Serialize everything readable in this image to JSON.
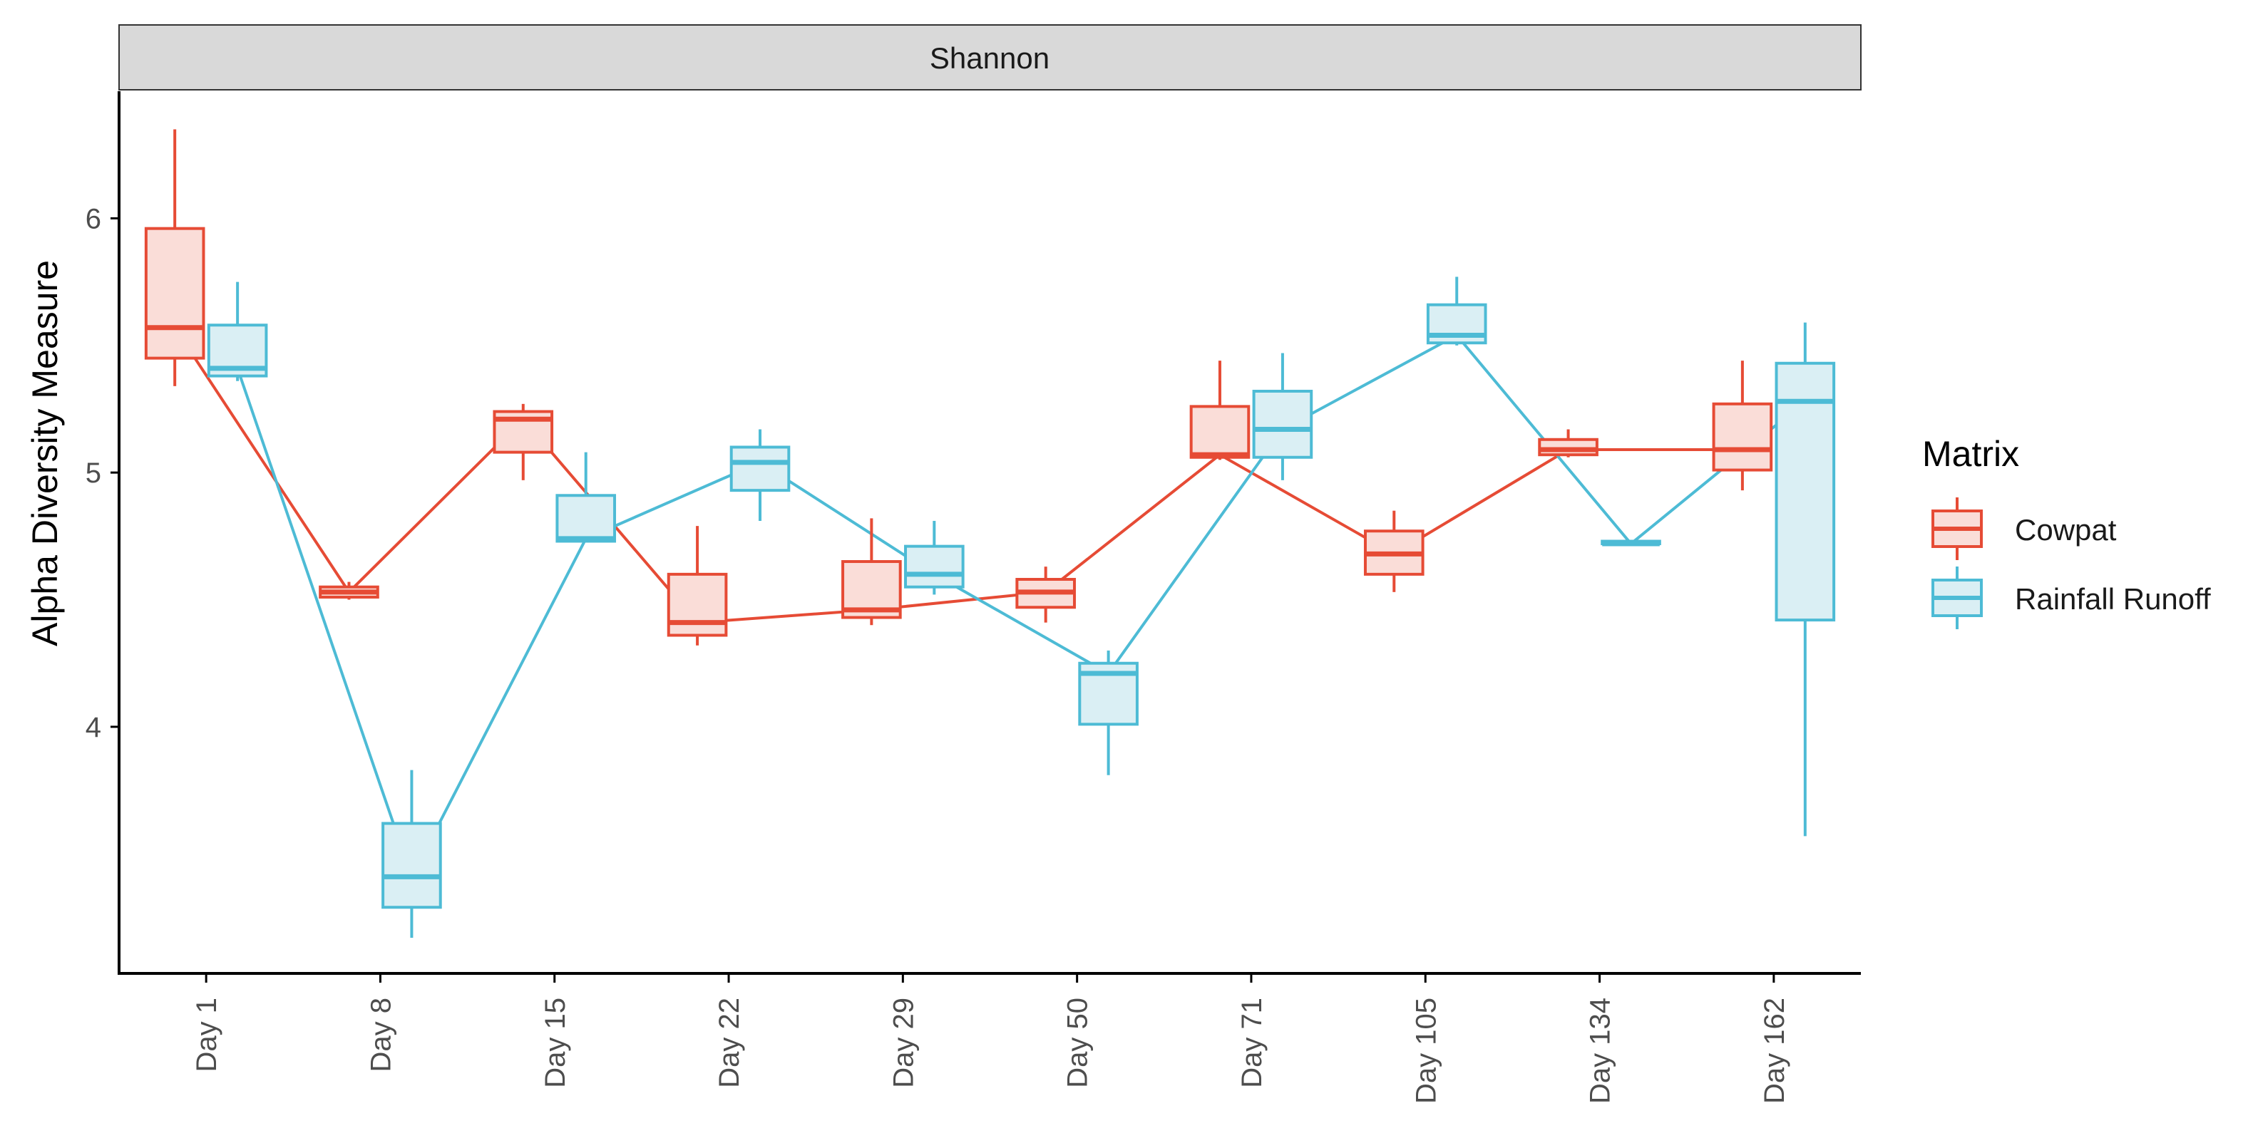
{
  "chart_data": {
    "type": "boxplot",
    "facet_title": "Shannon",
    "xlabel": "",
    "ylabel": "Alpha Diversity Measure",
    "ylim": [
      3.03,
      6.5
    ],
    "yticks": [
      4,
      5,
      6
    ],
    "categories": [
      "Day 1",
      "Day 8",
      "Day 15",
      "Day 22",
      "Day 29",
      "Day 50",
      "Day 71",
      "Day 105",
      "Day 134",
      "Day 162"
    ],
    "legend": {
      "title": "Matrix",
      "position": "right"
    },
    "series": [
      {
        "name": "Cowpat",
        "color": "#E64B35",
        "fill": "#FADDD8",
        "boxes": [
          {
            "min": 5.34,
            "q1": 5.45,
            "median": 5.57,
            "q3": 5.96,
            "max": 6.35
          },
          {
            "min": 4.5,
            "q1": 4.51,
            "median": 4.53,
            "q3": 4.55,
            "max": 4.57
          },
          {
            "min": 4.97,
            "q1": 5.08,
            "median": 5.21,
            "q3": 5.24,
            "max": 5.27
          },
          {
            "min": 4.32,
            "q1": 4.36,
            "median": 4.41,
            "q3": 4.6,
            "max": 4.79
          },
          {
            "min": 4.4,
            "q1": 4.43,
            "median": 4.46,
            "q3": 4.65,
            "max": 4.82
          },
          {
            "min": 4.41,
            "q1": 4.47,
            "median": 4.53,
            "q3": 4.58,
            "max": 4.63
          },
          {
            "min": 5.05,
            "q1": 5.06,
            "median": 5.07,
            "q3": 5.26,
            "max": 5.44
          },
          {
            "min": 4.53,
            "q1": 4.6,
            "median": 4.68,
            "q3": 4.77,
            "max": 4.85
          },
          {
            "min": 5.06,
            "q1": 5.07,
            "median": 5.09,
            "q3": 5.13,
            "max": 5.17
          },
          {
            "min": 4.93,
            "q1": 5.01,
            "median": 5.09,
            "q3": 5.27,
            "max": 5.44
          }
        ]
      },
      {
        "name": "Rainfall Runoff",
        "color": "#4DBBD5",
        "fill": "#DAEFF4",
        "boxes": [
          {
            "min": 5.36,
            "q1": 5.38,
            "median": 5.41,
            "q3": 5.58,
            "max": 5.75
          },
          {
            "min": 3.17,
            "q1": 3.29,
            "median": 3.41,
            "q3": 3.62,
            "max": 3.83
          },
          {
            "min": 4.73,
            "q1": 4.73,
            "median": 4.74,
            "q3": 4.91,
            "max": 5.08
          },
          {
            "min": 4.81,
            "q1": 4.93,
            "median": 5.04,
            "q3": 5.1,
            "max": 5.17
          },
          {
            "min": 4.52,
            "q1": 4.55,
            "median": 4.6,
            "q3": 4.71,
            "max": 4.81
          },
          {
            "min": 3.81,
            "q1": 4.01,
            "median": 4.21,
            "q3": 4.25,
            "max": 4.3
          },
          {
            "min": 4.97,
            "q1": 5.06,
            "median": 5.17,
            "q3": 5.32,
            "max": 5.47
          },
          {
            "min": 5.5,
            "q1": 5.51,
            "median": 5.54,
            "q3": 5.66,
            "max": 5.77
          },
          {
            "min": 4.72,
            "q1": 4.72,
            "median": 4.72,
            "q3": 4.73,
            "max": 4.73
          },
          {
            "min": 3.57,
            "q1": 4.42,
            "median": 5.28,
            "q3": 5.43,
            "max": 5.59
          }
        ]
      }
    ]
  }
}
